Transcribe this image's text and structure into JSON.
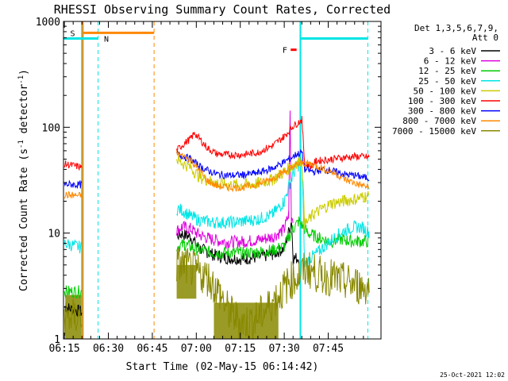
{
  "chart_data": {
    "type": "line",
    "title": "RHESSI Observing Summary Count Rates, Corrected",
    "xlabel": "Start Time (02-May-15 06:14:42)",
    "ylabel": "Corrected Count Rate (s",
    "ylabel_sup": "-1",
    "ylabel_mid": " detector",
    "ylabel_end": ")",
    "y_scale": "log",
    "ylim": [
      1,
      1000
    ],
    "xlim_min": [
      374.7,
      483.0
    ],
    "x_ticks": [
      {
        "label": "06:15",
        "min": 375
      },
      {
        "label": "06:30",
        "min": 390
      },
      {
        "label": "06:45",
        "min": 405
      },
      {
        "label": "07:00",
        "min": 420
      },
      {
        "label": "07:15",
        "min": 435
      },
      {
        "label": "07:30",
        "min": 450
      },
      {
        "label": "07:45",
        "min": 465
      }
    ],
    "y_ticks": [
      {
        "label": "1",
        "v": 1
      },
      {
        "label": "10",
        "v": 10
      },
      {
        "label": "100",
        "v": 100
      },
      {
        "label": "1000",
        "v": 1000
      }
    ],
    "legend_header": [
      "Det 1,3,5,6,7,9,",
      "Att 0"
    ],
    "legend_position": "right",
    "series": [
      {
        "name": "3 - 6 keV",
        "color": "#000000",
        "points": [
          [
            375,
            2
          ],
          [
            380.9,
            1.8
          ],
          [
            381,
            0
          ],
          [
            413.2,
            0
          ],
          [
            413.3,
            9.5
          ],
          [
            415,
            9.8
          ],
          [
            418,
            9.2
          ],
          [
            421,
            7.2
          ],
          [
            426,
            6.2
          ],
          [
            431,
            5.8
          ],
          [
            436,
            5.7
          ],
          [
            441,
            5.9
          ],
          [
            446,
            6.3
          ],
          [
            450,
            7.2
          ],
          [
            452.5,
            13
          ],
          [
            453,
            5.8
          ],
          [
            455,
            5.8
          ],
          [
            456,
            0
          ]
        ]
      },
      {
        "name": "6 - 12 keV",
        "color": "#dd00dd",
        "points": [
          [
            413.3,
            10.5
          ],
          [
            415,
            11.5
          ],
          [
            418,
            11
          ],
          [
            421,
            9.6
          ],
          [
            426,
            8.6
          ],
          [
            431,
            8.2
          ],
          [
            436,
            8.3
          ],
          [
            441,
            8.6
          ],
          [
            446,
            9.2
          ],
          [
            450,
            10.8
          ],
          [
            451.5,
            15
          ],
          [
            452,
            140
          ],
          [
            452.4,
            14
          ],
          [
            453,
            14
          ]
        ]
      },
      {
        "name": "12 - 25 keV",
        "color": "#00cc00",
        "points": [
          [
            375,
            2.8
          ],
          [
            380.9,
            2.8
          ],
          [
            381,
            0
          ],
          [
            405,
            0
          ],
          [
            413.3,
            7.5
          ],
          [
            416,
            7.8
          ],
          [
            421,
            6.9
          ],
          [
            426,
            6.5
          ],
          [
            431,
            6.5
          ],
          [
            436,
            6.5
          ],
          [
            441,
            6.6
          ],
          [
            446,
            6.9
          ],
          [
            450,
            7.5
          ],
          [
            453,
            11
          ],
          [
            455,
            13
          ],
          [
            458,
            10
          ],
          [
            462,
            9
          ],
          [
            466,
            8.3
          ],
          [
            470,
            8.8
          ],
          [
            472,
            8.4
          ],
          [
            475,
            8.4
          ],
          [
            479,
            8.3
          ]
        ]
      },
      {
        "name": "25 - 50 keV",
        "color": "#00e5e5",
        "points": [
          [
            375,
            8
          ],
          [
            380.9,
            7.3
          ],
          [
            381,
            0
          ],
          [
            413.3,
            17
          ],
          [
            415,
            16.5
          ],
          [
            418,
            14.5
          ],
          [
            421,
            13.2
          ],
          [
            426,
            12.6
          ],
          [
            431,
            12.6
          ],
          [
            436,
            12.9
          ],
          [
            441,
            13.5
          ],
          [
            446,
            15
          ],
          [
            450,
            20
          ],
          [
            452,
            30
          ],
          [
            454,
            42
          ],
          [
            456,
            46
          ],
          [
            457,
            5
          ],
          [
            459,
            5.8
          ],
          [
            462,
            6.8
          ],
          [
            466,
            8.6
          ],
          [
            470,
            10.4
          ],
          [
            474,
            11.5
          ],
          [
            477,
            11.2
          ],
          [
            479,
            10
          ]
        ]
      },
      {
        "name": "50 - 100 keV",
        "color": "#cccc00",
        "points": [
          [
            413.3,
            50
          ],
          [
            415,
            46
          ],
          [
            418,
            42
          ],
          [
            421,
            34
          ],
          [
            426,
            30
          ],
          [
            431,
            28.5
          ],
          [
            436,
            28.5
          ],
          [
            441,
            29.5
          ],
          [
            446,
            32
          ],
          [
            450,
            38
          ],
          [
            454,
            46
          ],
          [
            456,
            50
          ],
          [
            457,
            12
          ],
          [
            460,
            15
          ],
          [
            463,
            17
          ],
          [
            466,
            19
          ],
          [
            470,
            20
          ],
          [
            474,
            21
          ],
          [
            477,
            22
          ],
          [
            479,
            22.5
          ]
        ]
      },
      {
        "name": "100 - 300 keV",
        "color": "#ff0000",
        "points": [
          [
            375,
            45
          ],
          [
            380.9,
            42
          ],
          [
            381,
            0
          ],
          [
            413.3,
            60
          ],
          [
            415,
            67
          ],
          [
            418,
            78
          ],
          [
            419.5,
            88
          ],
          [
            421,
            78
          ],
          [
            424,
            63
          ],
          [
            427,
            56
          ],
          [
            431,
            55
          ],
          [
            436,
            55
          ],
          [
            441,
            58
          ],
          [
            446,
            67
          ],
          [
            450,
            82
          ],
          [
            453,
            102
          ],
          [
            456,
            118
          ],
          [
            457,
            45
          ],
          [
            459,
            43
          ],
          [
            461,
            48
          ],
          [
            466,
            50
          ],
          [
            471,
            52
          ],
          [
            475,
            53
          ],
          [
            479,
            52
          ]
        ]
      },
      {
        "name": "300 - 800 keV",
        "color": "#0000ff",
        "points": [
          [
            375,
            29
          ],
          [
            380.9,
            28.5
          ],
          [
            381,
            0
          ],
          [
            413.3,
            56
          ],
          [
            415,
            54
          ],
          [
            418,
            50
          ],
          [
            421,
            43
          ],
          [
            424,
            39
          ],
          [
            427,
            36
          ],
          [
            431,
            35
          ],
          [
            436,
            35.5
          ],
          [
            441,
            37
          ],
          [
            446,
            41
          ],
          [
            450,
            47
          ],
          [
            454,
            55
          ],
          [
            456,
            58
          ],
          [
            457,
            40
          ],
          [
            460,
            38
          ],
          [
            463,
            40
          ],
          [
            466,
            39
          ],
          [
            470,
            36
          ],
          [
            474,
            35
          ],
          [
            479,
            33
          ]
        ]
      },
      {
        "name": "800 - 7000 keV",
        "color": "#ff8800",
        "points": [
          [
            375,
            23
          ],
          [
            380.9,
            22.5
          ],
          [
            381,
            0
          ],
          [
            413.3,
            56
          ],
          [
            415,
            54
          ],
          [
            418,
            50
          ],
          [
            421,
            39
          ],
          [
            424,
            31
          ],
          [
            427,
            28
          ],
          [
            431,
            27
          ],
          [
            436,
            27
          ],
          [
            441,
            29
          ],
          [
            446,
            33
          ],
          [
            450,
            38
          ],
          [
            454,
            44
          ],
          [
            456,
            46
          ],
          [
            459,
            45
          ],
          [
            463,
            41
          ],
          [
            467,
            37
          ],
          [
            471,
            32
          ],
          [
            475,
            29
          ],
          [
            479,
            27
          ]
        ]
      },
      {
        "name": "7000 - 15000 keV",
        "color": "#888800",
        "points": [
          [
            375,
            1.6
          ],
          [
            380.9,
            1.6
          ],
          [
            381,
            0
          ],
          [
            405,
            0
          ],
          [
            413.3,
            5
          ],
          [
            416,
            5
          ],
          [
            420,
            4.3
          ],
          [
            424,
            3.8
          ],
          [
            428,
            2.7
          ],
          [
            431,
            1.8
          ],
          [
            436,
            1.4
          ],
          [
            440,
            1.5
          ],
          [
            443,
            1.8
          ],
          [
            447,
            2.4
          ],
          [
            450,
            3
          ],
          [
            452,
            3.5
          ],
          [
            455,
            4
          ],
          [
            458,
            4.6
          ],
          [
            462,
            4
          ],
          [
            466,
            3.8
          ],
          [
            470,
            3.5
          ],
          [
            475,
            3.2
          ],
          [
            479,
            3
          ]
        ]
      }
    ],
    "markers": [
      {
        "label": "S",
        "color": "#ff8800",
        "y": 780
      },
      {
        "label": "N",
        "color": "#00e5e5",
        "y": 690
      },
      {
        "label": "F",
        "color": "#ff0000",
        "y": 540
      }
    ]
  },
  "footer_date": "25-Oct-2021 12:02"
}
